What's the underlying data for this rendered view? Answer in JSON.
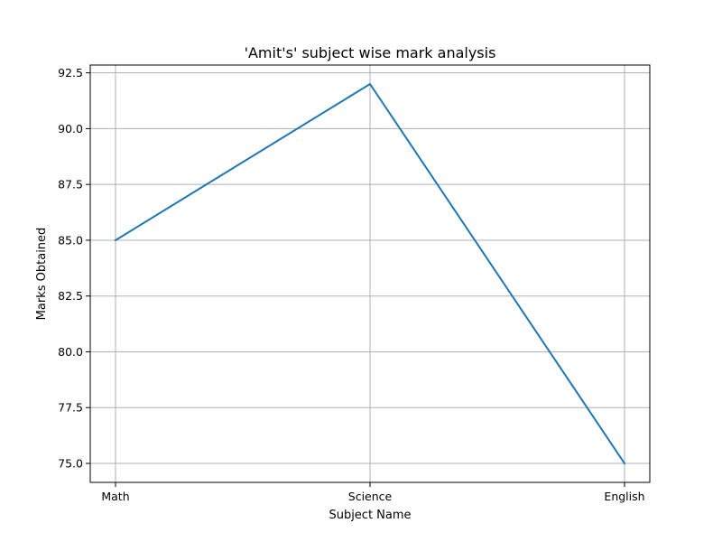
{
  "chart_data": {
    "type": "line",
    "title": "'Amit's' subject wise mark analysis",
    "xlabel": "Subject Name",
    "ylabel": "Marks Obtained",
    "categories": [
      "Math",
      "Science",
      "English"
    ],
    "series": [
      {
        "values": [
          85,
          92,
          75
        ]
      }
    ],
    "ylim": [
      74.15,
      92.85
    ],
    "yticks": [
      75.0,
      77.5,
      80.0,
      82.5,
      85.0,
      87.5,
      90.0,
      92.5
    ],
    "ytick_labels": [
      "75.0",
      "77.5",
      "80.0",
      "82.5",
      "85.0",
      "87.5",
      "90.0",
      "92.5"
    ],
    "grid": true,
    "line_color": "#1f77b4"
  }
}
